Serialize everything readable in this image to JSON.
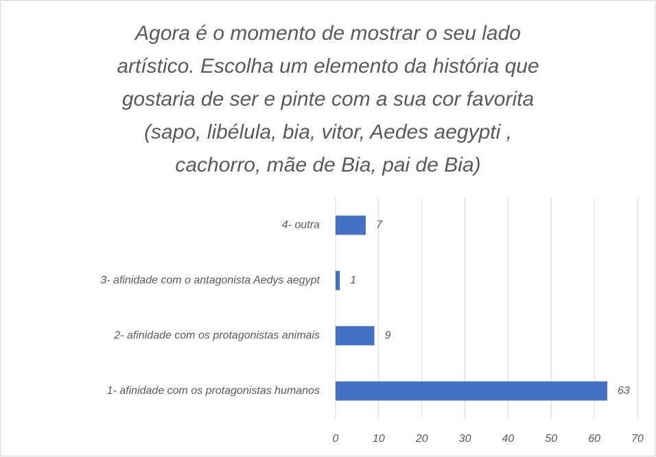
{
  "chart_data": {
    "type": "bar",
    "orientation": "horizontal",
    "title": [
      "Agora é o momento de mostrar o seu lado",
      "artístico. Escolha um elemento da história que",
      "gostaria de ser e pinte com a sua cor favorita",
      "(sapo, libélula, bia, vitor, Aedes aegypti ,",
      "cachorro, mãe de Bia, pai de Bia)"
    ],
    "categories": [
      "1- afinidade com os protagonistas humanos",
      "2- afinidade com os protagonistas animais",
      "3- afinidade com o antagonista Aedys aegypt",
      "4- outra"
    ],
    "values": [
      63,
      9,
      1,
      7
    ],
    "color": "#4472c4",
    "xlim": [
      0,
      70
    ],
    "xticks": [
      0,
      10,
      20,
      30,
      40,
      50,
      60,
      70
    ],
    "grid": true
  }
}
